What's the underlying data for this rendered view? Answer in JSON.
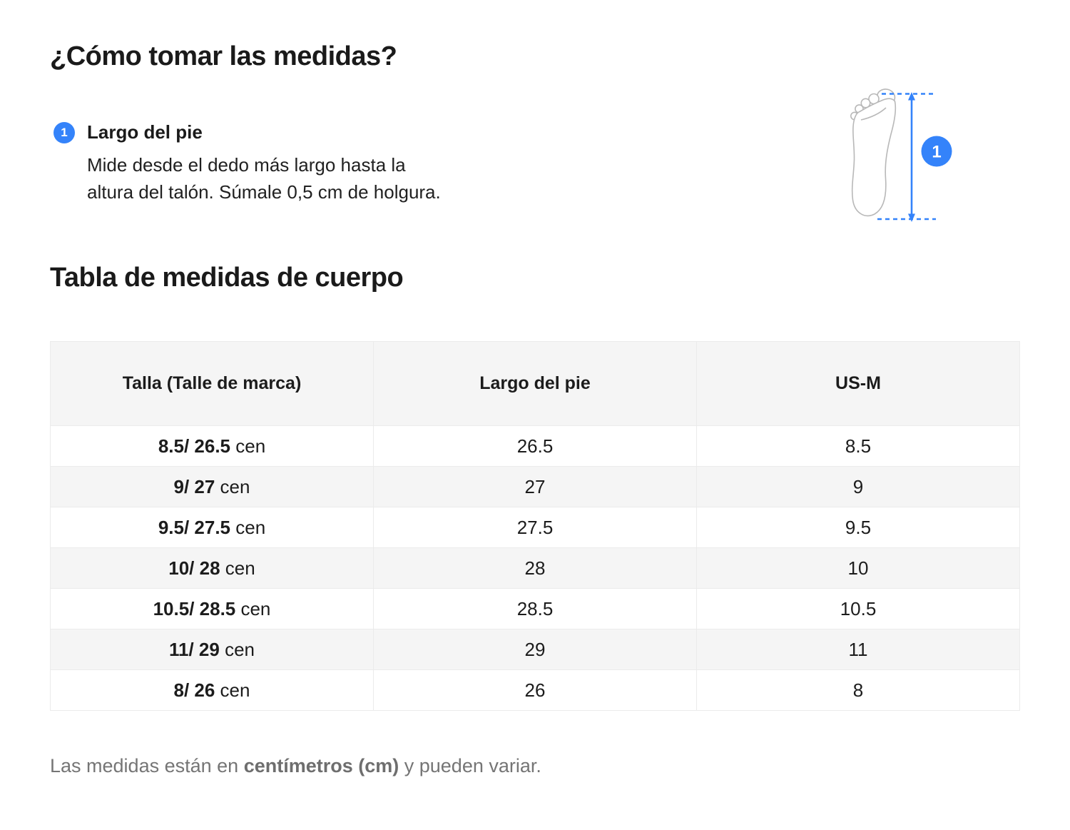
{
  "page_title": "¿Cómo tomar las medidas?",
  "instruction": {
    "badge": "1",
    "label": "Largo del pie",
    "description_lines": [
      "Mide desde el dedo más largo hasta la",
      "altura del talón. Súmale 0,5 cm de holgura."
    ]
  },
  "illustration": {
    "badge": "1"
  },
  "section_title": "Tabla de medidas de cuerpo",
  "table": {
    "headers": [
      "Talla (Talle de marca)",
      "Largo del pie",
      "US-M"
    ],
    "rows": [
      {
        "talla": "8.5/ 26.5",
        "talla_unit": "cen",
        "largo": "26.5",
        "us": "8.5"
      },
      {
        "talla": "9/ 27",
        "talla_unit": "cen",
        "largo": "27",
        "us": "9"
      },
      {
        "talla": "9.5/ 27.5",
        "talla_unit": "cen",
        "largo": "27.5",
        "us": "9.5"
      },
      {
        "talla": "10/ 28",
        "talla_unit": "cen",
        "largo": "28",
        "us": "10"
      },
      {
        "talla": "10.5/ 28.5",
        "talla_unit": "cen",
        "largo": "28.5",
        "us": "10.5"
      },
      {
        "talla": "11/ 29",
        "talla_unit": "cen",
        "largo": "29",
        "us": "11"
      },
      {
        "talla": "8/ 26",
        "talla_unit": "cen",
        "largo": "26",
        "us": "8"
      }
    ]
  },
  "footnote": {
    "prefix": "Las medidas están en ",
    "bold": "centímetros (cm)",
    "suffix": " y pueden variar."
  },
  "colors": {
    "accent_blue": "#3483fa",
    "header_bg": "#f5f5f5",
    "row_alt_bg": "#f5f5f5",
    "border": "#ebebeb",
    "text_dark": "#1a1a1a",
    "text_gray": "#757575",
    "foot_outline": "#b8b8b8"
  }
}
